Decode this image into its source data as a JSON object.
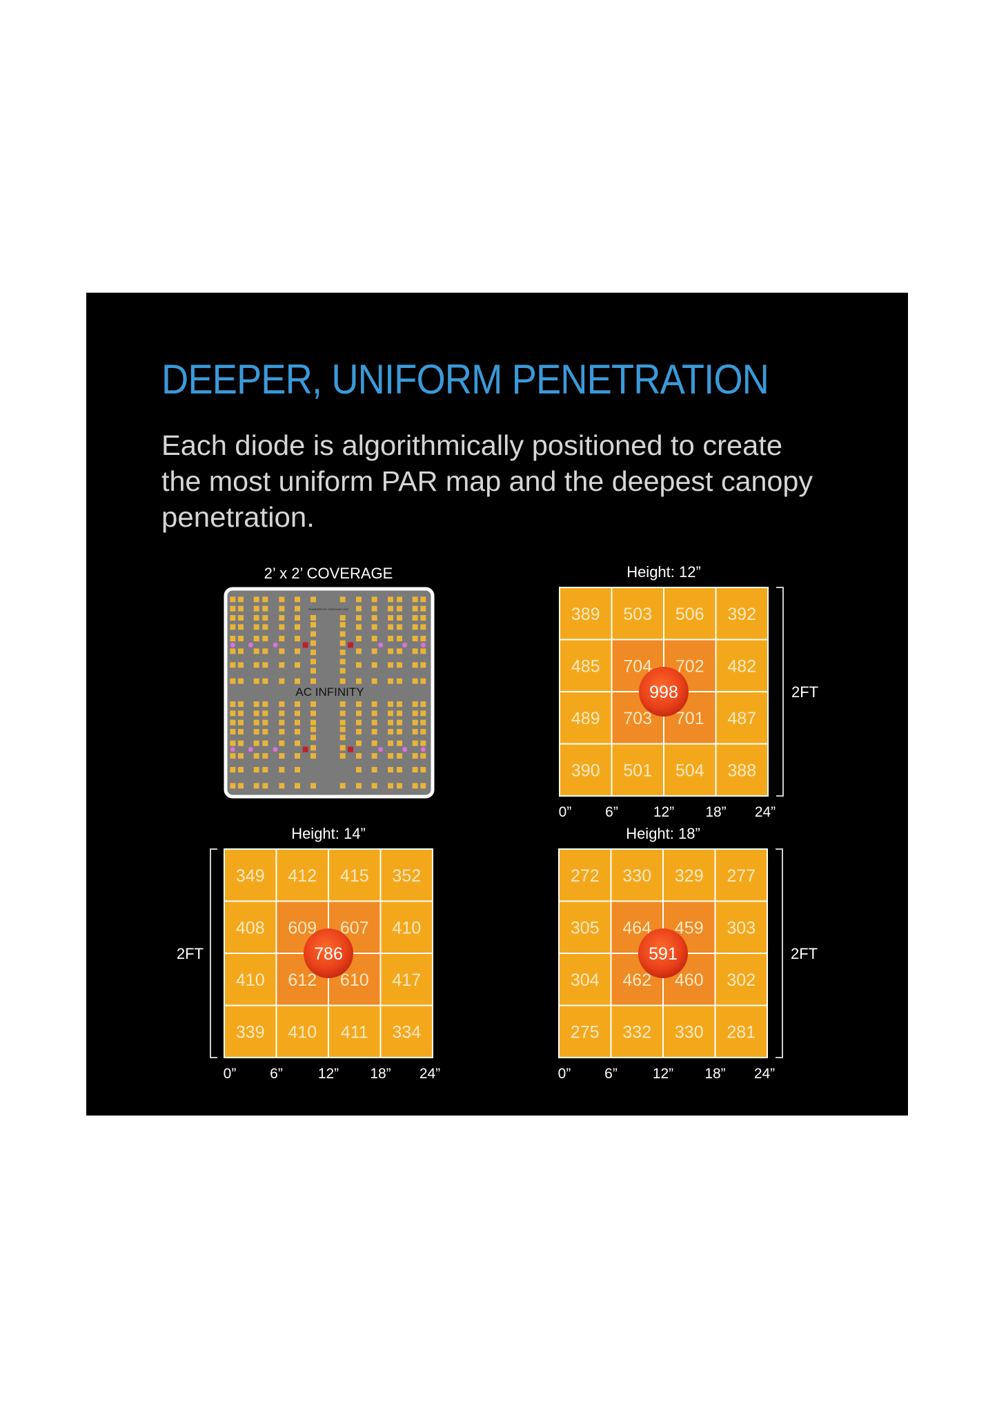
{
  "header": {
    "title": "DEEPER, UNIFORM PENETRATION",
    "body_lines": [
      "Each diode is algorithmically positioned to create",
      "the most uniform PAR map and the deepest canopy",
      "penetration."
    ]
  },
  "led_panel": {
    "caption": "2’ x 2’ COVERAGE",
    "brand": "AC INFINITY",
    "fine_print": "POWERED BY SAMSUNG LED"
  },
  "colors": {
    "background": "#000000",
    "title": "#3a9ad9",
    "cell_outer": "#f3a81b",
    "cell_inner": "#f08a24",
    "peak": "#e8401a",
    "grid_line": "#ffffff"
  },
  "chart_data": [
    {
      "type": "heatmap",
      "title": "Height: 12”",
      "x_ticks": [
        "0”",
        "6”",
        "12”",
        "18”",
        "24”"
      ],
      "side_label": "2FT",
      "side": "right",
      "values": [
        [
          389,
          503,
          506,
          392
        ],
        [
          485,
          704,
          702,
          482
        ],
        [
          489,
          703,
          701,
          487
        ],
        [
          390,
          501,
          504,
          388
        ]
      ],
      "center": 998
    },
    {
      "type": "heatmap",
      "title": "Height: 14”",
      "x_ticks": [
        "0”",
        "6”",
        "12”",
        "18”",
        "24”"
      ],
      "side_label": "2FT",
      "side": "left",
      "values": [
        [
          349,
          412,
          415,
          352
        ],
        [
          408,
          609,
          607,
          410
        ],
        [
          410,
          612,
          610,
          417
        ],
        [
          339,
          410,
          411,
          334
        ]
      ],
      "center": 786
    },
    {
      "type": "heatmap",
      "title": "Height: 18”",
      "x_ticks": [
        "0”",
        "6”",
        "12”",
        "18”",
        "24”"
      ],
      "side_label": "2FT",
      "side": "right",
      "values": [
        [
          272,
          330,
          329,
          277
        ],
        [
          305,
          464,
          459,
          303
        ],
        [
          304,
          462,
          460,
          302
        ],
        [
          275,
          332,
          330,
          281
        ]
      ],
      "center": 591
    }
  ]
}
